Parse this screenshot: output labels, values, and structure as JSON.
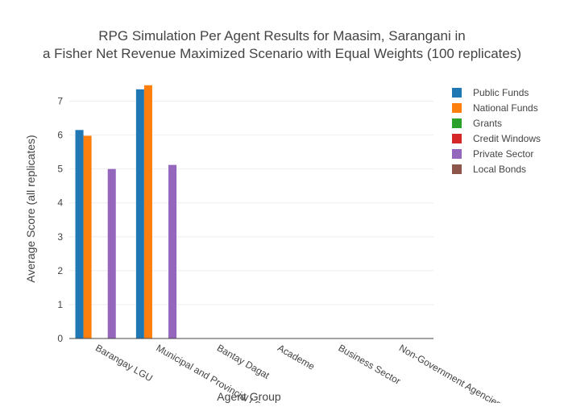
{
  "chart_data": {
    "type": "bar",
    "title_lines": [
      "RPG Simulation Per Agent Results for Maasim, Sarangani in",
      "a Fisher Net Revenue Maximized Scenario with Equal Weights (100 replicates)"
    ],
    "xlabel": "Agent Group",
    "ylabel": "Average Score (all replicates)",
    "ylim": [
      0,
      7.75
    ],
    "yticks": [
      0,
      1,
      2,
      3,
      4,
      5,
      6,
      7
    ],
    "grid": true,
    "legend_position": "top-right",
    "categories": [
      "Barangay LGU",
      "Municipal and Provincial LGU",
      "Bantay Dagat",
      "Academe",
      "Business Sector",
      "Non-Government Agencies"
    ],
    "series": [
      {
        "name": "Public Funds",
        "color": "#1f77b4",
        "values": [
          6.15,
          7.35,
          0,
          0,
          0,
          0
        ]
      },
      {
        "name": "National Funds",
        "color": "#ff7f0e",
        "values": [
          5.98,
          7.47,
          0,
          0,
          0,
          0
        ]
      },
      {
        "name": "Grants",
        "color": "#2ca02c",
        "values": [
          0,
          0,
          0,
          0,
          0,
          0
        ]
      },
      {
        "name": "Credit Windows",
        "color": "#d62728",
        "values": [
          0,
          0,
          0,
          0,
          0,
          0
        ]
      },
      {
        "name": "Private Sector",
        "color": "#9467bd",
        "values": [
          5.0,
          5.12,
          0,
          0,
          0,
          0
        ]
      },
      {
        "name": "Local Bonds",
        "color": "#8c564b",
        "values": [
          0,
          0,
          0,
          0,
          0,
          0
        ]
      }
    ]
  }
}
